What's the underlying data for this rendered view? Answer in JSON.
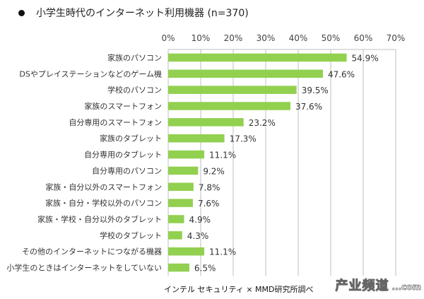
{
  "chart_data": {
    "type": "bar",
    "orientation": "horizontal",
    "title": "小学生時代のインターネット利用機器 (n=370)",
    "xlabel": "",
    "ylabel": "",
    "xlim": [
      0,
      70
    ],
    "x_ticks": [
      0,
      10,
      20,
      30,
      40,
      50,
      60,
      70
    ],
    "x_tick_labels": [
      "0%",
      "10%",
      "20%",
      "30%",
      "40%",
      "50%",
      "60%",
      "70%"
    ],
    "grid": true,
    "bar_color": "#92d050",
    "categories": [
      "家族のパソコン",
      "DSやプレイステーションなどのゲーム機",
      "学校のパソコン",
      "家族のスマートフォン",
      "自分専用のスマートフォン",
      "家族のタブレット",
      "自分専用のタブレット",
      "自分専用のパソコン",
      "家族・自分以外のスマートフォン",
      "家族・自分・学校以外のパソコン",
      "家族・学校・自分以外のタブレット",
      "学校のタブレット",
      "その他のインターネットにつながる機器",
      "小学生のときはインターネットをしていない"
    ],
    "values": [
      54.9,
      47.6,
      39.5,
      37.6,
      23.2,
      17.3,
      11.1,
      9.2,
      7.8,
      7.6,
      4.9,
      4.3,
      11.1,
      6.5
    ],
    "value_labels": [
      "54.9%",
      "47.6%",
      "39.5%",
      "37.6%",
      "23.2%",
      "17.3%",
      "11.1%",
      "9.2%",
      "7.8%",
      "7.6%",
      "4.9%",
      "4.3%",
      "11.1%",
      "6.5%"
    ],
    "source": "インテル セキュリティ × MMD研究所調べ"
  },
  "watermark": {
    "text": "产业频道",
    "sub": "...com"
  }
}
